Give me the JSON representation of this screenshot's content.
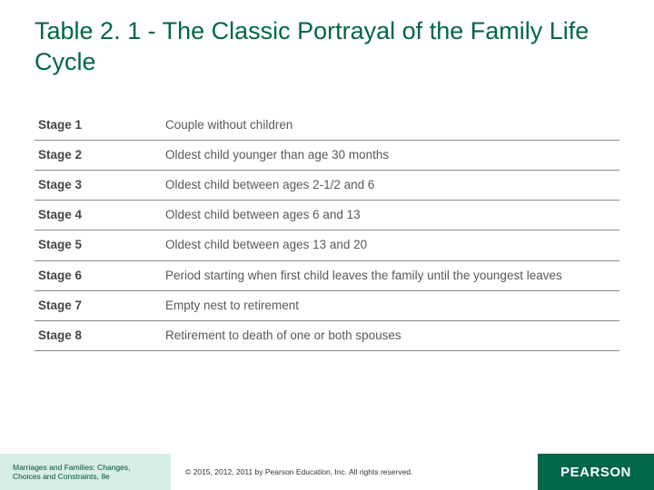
{
  "title": "Table 2. 1 - The Classic Portrayal of the Family Life Cycle",
  "table": {
    "rows": [
      {
        "stage": "Stage 1",
        "desc": "Couple without children"
      },
      {
        "stage": "Stage 2",
        "desc": "Oldest child younger than age 30 months"
      },
      {
        "stage": "Stage 3",
        "desc": "Oldest child between ages 2-1/2 and 6"
      },
      {
        "stage": "Stage 4",
        "desc": "Oldest child between ages 6 and 13"
      },
      {
        "stage": "Stage 5",
        "desc": "Oldest child between ages 13 and 20"
      },
      {
        "stage": "Stage 6",
        "desc": "Period starting when first child leaves the family until the youngest leaves"
      },
      {
        "stage": "Stage 7",
        "desc": "Empty nest to retirement"
      },
      {
        "stage": "Stage 8",
        "desc": "Retirement to death of one or both spouses"
      }
    ],
    "border_color": "#888888",
    "stage_color": "#454648",
    "desc_color": "#58595b",
    "font_size": 13.5
  },
  "footer": {
    "book_line1": "Marriages and Families: Changes,",
    "book_line2": "Choices and Constraints, 8e",
    "copyright": "© 2015, 2012, 2011 by Pearson Education, Inc. All rights reserved.",
    "brand": "PEARSON"
  },
  "colors": {
    "title": "#006648",
    "footer_left_bg": "#d7eee6",
    "footer_right_bg": "#006648",
    "background": "#ffffff"
  }
}
